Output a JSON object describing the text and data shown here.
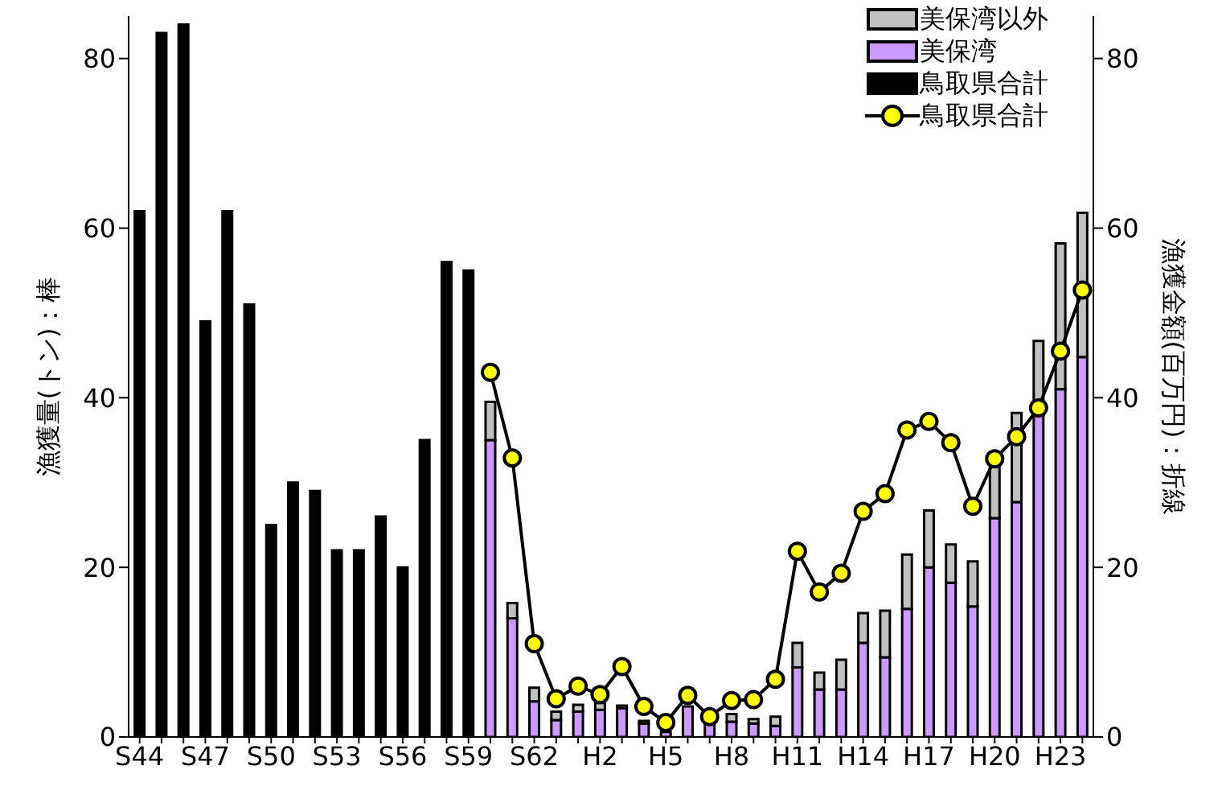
{
  "chart_data": {
    "type": "bar",
    "stacked": true,
    "categories": [
      "S44",
      null,
      null,
      "S47",
      null,
      null,
      "S50",
      null,
      null,
      "S53",
      null,
      null,
      "S56",
      null,
      null,
      "S59",
      null,
      null,
      "S62",
      null,
      null,
      "H2",
      null,
      null,
      "H5",
      null,
      null,
      "H8",
      null,
      null,
      "H11",
      null,
      null,
      "H14",
      null,
      null,
      "H17",
      null,
      null,
      "H20",
      null,
      null,
      "H23",
      null
    ],
    "series": [
      {
        "name": "鳥取県合計",
        "color": "#000000",
        "values": [
          62,
          83,
          84,
          49,
          62,
          51,
          25,
          30,
          29,
          22,
          22,
          26,
          20,
          35,
          56,
          55,
          null,
          null,
          null,
          null,
          null,
          null,
          null,
          null,
          null,
          null,
          null,
          null,
          null,
          null,
          null,
          null,
          null,
          null,
          null,
          null,
          null,
          null,
          null,
          null,
          null,
          null,
          null,
          null
        ]
      },
      {
        "name": "美保湾",
        "color": "#cc99ff",
        "values": [
          null,
          null,
          null,
          null,
          null,
          null,
          null,
          null,
          null,
          null,
          null,
          null,
          null,
          null,
          null,
          null,
          35,
          14,
          4.2,
          2,
          3,
          3.2,
          3.4,
          1.6,
          0.6,
          3.6,
          1.7,
          1.8,
          1.6,
          1.3,
          8.2,
          5.6,
          5.6,
          11.1,
          9.4,
          15.1,
          20,
          18.2,
          15.4,
          25.8,
          27.7,
          37.9,
          41,
          44.8
        ]
      },
      {
        "name": "美保湾以外",
        "color": "#c0c0c0",
        "values": [
          null,
          null,
          null,
          null,
          null,
          null,
          null,
          null,
          null,
          null,
          null,
          null,
          null,
          null,
          null,
          null,
          4.5,
          1.8,
          1.6,
          1,
          0.8,
          0.8,
          0.3,
          0.3,
          null,
          null,
          null,
          0.9,
          0.5,
          1.1,
          2.9,
          2,
          3.5,
          3.5,
          5.5,
          6.4,
          6.7,
          4.5,
          5.3,
          6.7,
          10.5,
          8.8,
          17.2,
          17
        ]
      },
      {
        "name": "鳥取県合計",
        "type": "line",
        "axis": "y2",
        "color": "#ffff00",
        "values": [
          null,
          null,
          null,
          null,
          null,
          null,
          null,
          null,
          null,
          null,
          null,
          null,
          null,
          null,
          null,
          null,
          43,
          32.9,
          11,
          4.5,
          6,
          5,
          8.3,
          3.6,
          1.7,
          4.9,
          2.4,
          4.3,
          4.4,
          6.8,
          21.9,
          17.1,
          19.3,
          26.6,
          28.7,
          36.2,
          37.2,
          34.7,
          27.2,
          32.8,
          35.4,
          38.8,
          45.5,
          52.7
        ]
      }
    ],
    "ylabel": "漁獲量(トン)：棒",
    "y2label": "漁獲金額(百万円)：折線",
    "ylim": [
      0,
      85
    ],
    "yticks": [
      0,
      20,
      40,
      60,
      80
    ],
    "y2lim": [
      0,
      85
    ],
    "y2ticks": [
      0,
      20,
      40,
      60,
      80
    ],
    "legend": "top right",
    "marker": "circle"
  }
}
